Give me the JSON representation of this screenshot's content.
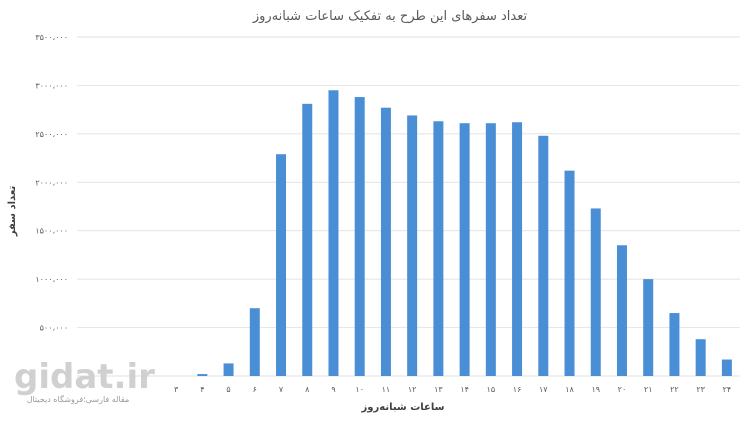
{
  "chart_data": {
    "type": "bar",
    "title": "تعداد سفرهای این طرح به تفکیک ساعات شبانه‌روز",
    "xlabel": "ساعات شبانه‌روز",
    "ylabel": "تعداد سفر",
    "categories": [
      "۳",
      "۴",
      "۵",
      "۶",
      "۷",
      "۸",
      "۹",
      "۱۰",
      "۱۱",
      "۱۲",
      "۱۳",
      "۱۴",
      "۱۵",
      "۱۶",
      "۱۷",
      "۱۸",
      "۱۹",
      "۲۰",
      "۲۱",
      "۲۲",
      "۲۳",
      "۲۴"
    ],
    "values": [
      0,
      20000,
      130000,
      700000,
      2290000,
      2810000,
      2950000,
      2880000,
      2770000,
      2690000,
      2630000,
      2610000,
      2610000,
      2620000,
      2480000,
      2120000,
      1730000,
      1350000,
      1000000,
      650000,
      380000,
      170000
    ],
    "yticks": [
      "۰",
      "۵۰۰،۰۰۰",
      "۱۰۰۰،۰۰۰",
      "۱۵۰۰،۰۰۰",
      "۲۰۰۰،۰۰۰",
      "۲۵۰۰،۰۰۰",
      "۳۰۰۰،۰۰۰",
      "۳۵۰۰،۰۰۰"
    ],
    "ylim": [
      0,
      3500000
    ],
    "grid": true,
    "color": "#4a8fd6"
  },
  "watermark": {
    "text": "gidat.ir",
    "subtext": "مقاله فارسی؛فروشگاه دیجیتال"
  }
}
